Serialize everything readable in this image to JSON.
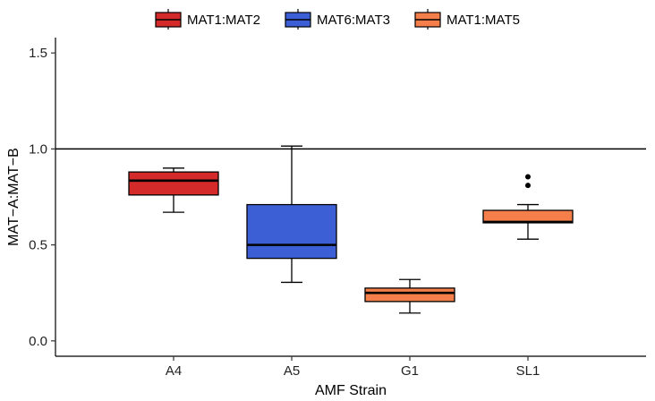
{
  "chart_data": {
    "type": "box",
    "xlabel": "AMF Strain",
    "ylabel": "MAT−A:MAT−B",
    "ylim": [
      -0.08,
      1.58
    ],
    "yticks": [
      0.0,
      0.5,
      1.0,
      1.5
    ],
    "ytick_labels": [
      "0.0",
      "0.5",
      "1.0",
      "1.5"
    ],
    "reference_line": 1.0,
    "grid": false,
    "legend_position": "top",
    "categories": [
      "A4",
      "A5",
      "G1",
      "SL1"
    ],
    "series": [
      {
        "name": "MAT1:MAT2",
        "color": "#d42a2a",
        "category": "A4",
        "whisker_low": 0.67,
        "q1": 0.76,
        "median": 0.835,
        "q3": 0.88,
        "whisker_high": 0.9,
        "outliers": []
      },
      {
        "name": "MAT6:MAT3",
        "color": "#3c5fd6",
        "category": "A5",
        "whisker_low": 0.305,
        "q1": 0.43,
        "median": 0.5,
        "q3": 0.71,
        "whisker_high": 1.015,
        "outliers": []
      },
      {
        "name": "MAT1:MAT5",
        "color": "#f47f4a",
        "category": "G1",
        "whisker_low": 0.145,
        "q1": 0.205,
        "median": 0.25,
        "q3": 0.275,
        "whisker_high": 0.32,
        "outliers": []
      },
      {
        "name": "MAT1:MAT5",
        "color": "#f47f4a",
        "category": "SL1",
        "whisker_low": 0.53,
        "q1": 0.615,
        "median": 0.62,
        "q3": 0.68,
        "whisker_high": 0.71,
        "outliers": [
          0.81,
          0.855
        ]
      }
    ],
    "legend": [
      {
        "name": "MAT1:MAT2",
        "color": "#d42a2a"
      },
      {
        "name": "MAT6:MAT3",
        "color": "#3c5fd6"
      },
      {
        "name": "MAT1:MAT5",
        "color": "#f47f4a"
      }
    ]
  }
}
